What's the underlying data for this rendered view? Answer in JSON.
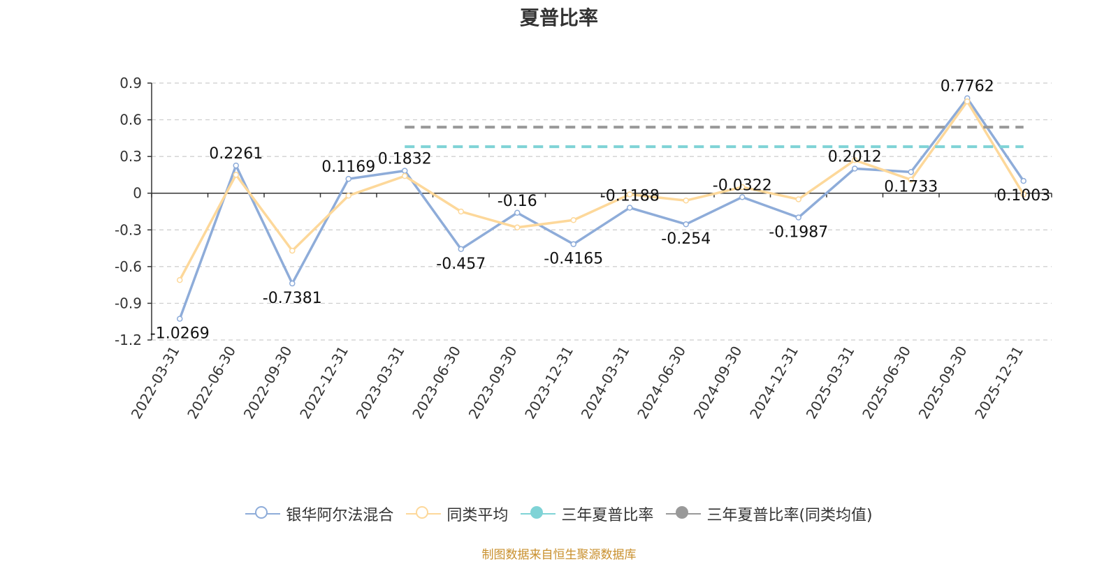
{
  "chart_data": {
    "type": "line",
    "title": "夏普比率",
    "categories": [
      "2022-03-31",
      "2022-06-30",
      "2022-09-30",
      "2022-12-31",
      "2023-03-31",
      "2023-06-30",
      "2023-09-30",
      "2023-12-31",
      "2024-03-31",
      "2024-06-30",
      "2024-09-30",
      "2024-12-31",
      "2025-03-31",
      "2025-06-30",
      "2025-09-30",
      "2025-12-31"
    ],
    "y_ticks": [
      "0.9",
      "0.6",
      "0.3",
      "0",
      "-0.3",
      "-0.6",
      "-0.9",
      "-1.2"
    ],
    "ylim": [
      -1.2,
      0.9
    ],
    "grid": true,
    "legend_position": "bottom",
    "series": [
      {
        "name": "银华阿尔法混合",
        "color": "#8eacd9",
        "values": [
          -1.0269,
          0.2261,
          -0.7381,
          0.1169,
          0.1832,
          -0.457,
          -0.16,
          -0.4165,
          -0.1188,
          -0.254,
          -0.0322,
          -0.1987,
          0.2012,
          0.1733,
          0.7762,
          0.1003
        ],
        "labels": [
          "-1.0269",
          "0.2261",
          "-0.7381",
          "0.1169",
          "0.1832",
          "-0.457",
          "-0.16",
          "-0.4165",
          "-0.1188",
          "-0.254",
          "-0.0322",
          "-0.1987",
          "0.2012",
          "0.1733",
          "0.7762",
          "0.1003"
        ]
      },
      {
        "name": "同类平均",
        "color": "#fdd89a",
        "values": [
          -0.71,
          0.15,
          -0.47,
          -0.02,
          0.14,
          -0.15,
          -0.28,
          -0.22,
          -0.01,
          -0.06,
          0.05,
          -0.05,
          0.27,
          0.11,
          0.75,
          -0.01
        ]
      },
      {
        "name": "三年夏普比率",
        "color": "#7fd3d6",
        "type": "dashed",
        "from": "2023-03-31",
        "to": "2025-12-31",
        "value": 0.38
      },
      {
        "name": "三年夏普比率(同类均值)",
        "color": "#999999",
        "type": "dashed",
        "from": "2023-03-31",
        "to": "2025-12-31",
        "value": 0.54
      }
    ]
  },
  "source_note": "制图数据来自恒生聚源数据库"
}
